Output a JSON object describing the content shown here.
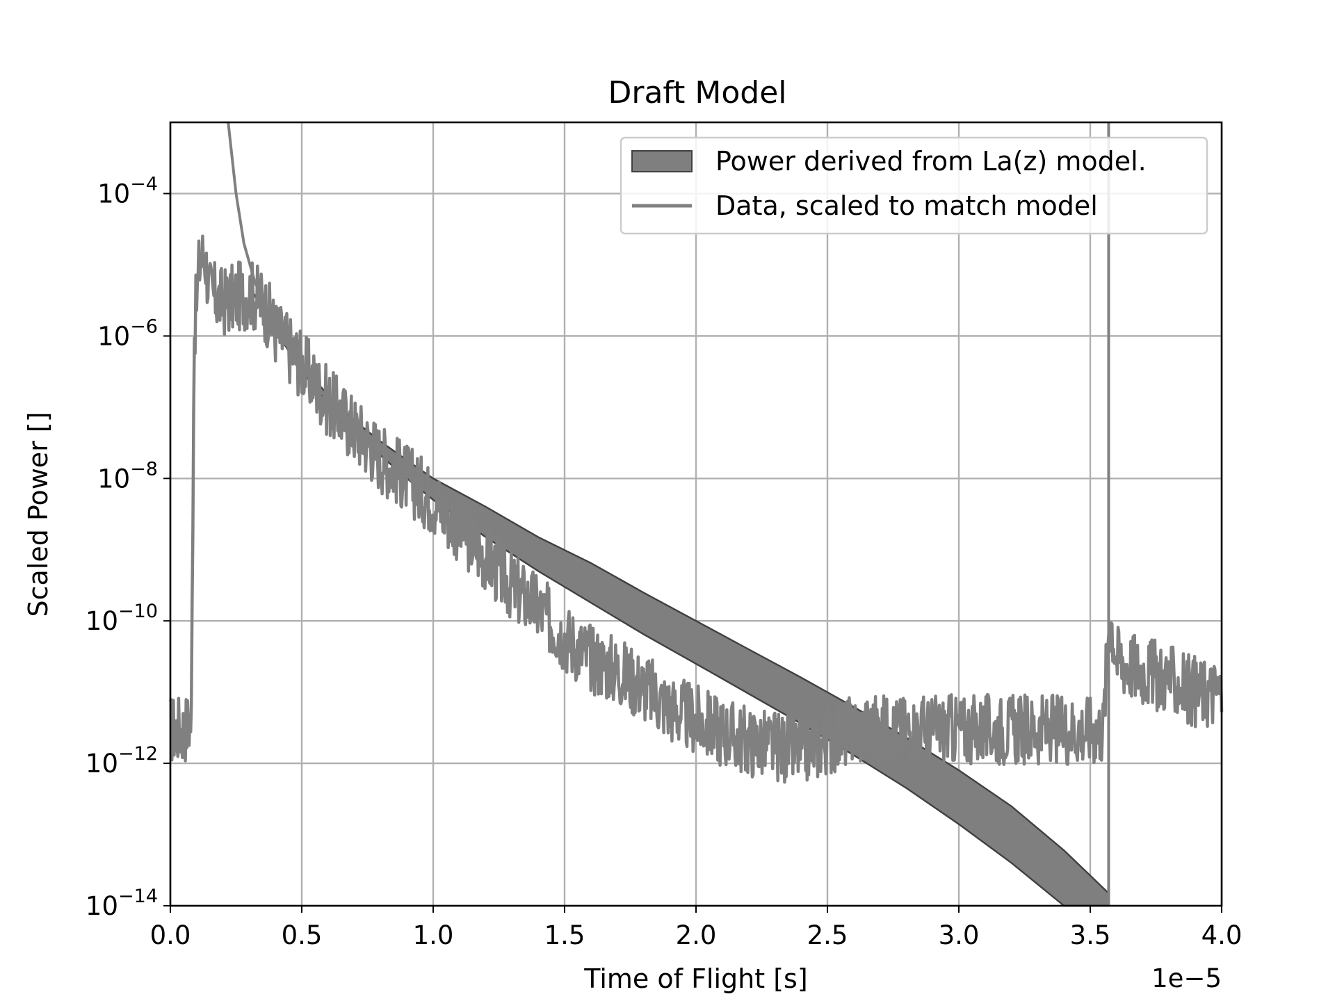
{
  "chart_data": {
    "type": "line",
    "title": "Draft Model",
    "xlabel": "Time of Flight [s]",
    "ylabel": "Scaled Power []",
    "x_offset_label": "1e−5",
    "xlim": [
      0.0,
      4e-05
    ],
    "ylim": [
      1e-14,
      0.001
    ],
    "yscale": "log",
    "grid": true,
    "legend_position": "top-right",
    "x_tick_labels": [
      "0.0",
      "0.5",
      "1.0",
      "1.5",
      "2.0",
      "2.5",
      "3.0",
      "3.5",
      "4.0"
    ],
    "y_tick_labels": [
      {
        "base": "10",
        "exp": "−4"
      },
      {
        "base": "10",
        "exp": "−6"
      },
      {
        "base": "10",
        "exp": "−8"
      },
      {
        "base": "10",
        "exp": "−10"
      },
      {
        "base": "10",
        "exp": "−12"
      },
      {
        "base": "10",
        "exp": "−14"
      }
    ],
    "colors": {
      "band_fill": "#7f7f7f",
      "band_edge": "#404040",
      "data_line": "#808080",
      "grid": "#b0b0b0"
    },
    "series": [
      {
        "name": "Power derived from La(z) model.",
        "kind": "band",
        "x": [
          3e-06,
          4e-06,
          5e-06,
          6e-06,
          7e-06,
          8e-06,
          9e-06,
          1e-05,
          1.2e-05,
          1.4e-05,
          1.6e-05,
          1.8e-05,
          2e-05,
          2.2e-05,
          2.4e-05,
          2.6e-05,
          2.8e-05,
          3e-05,
          3.2e-05,
          3.4e-05,
          3.57e-05
        ],
        "lower": [
          5e-06,
          1.2e-06,
          3.2e-07,
          1.1e-07,
          4.5e-08,
          2.1e-08,
          1e-08,
          5e-09,
          1.5e-09,
          5e-10,
          1.8e-10,
          6.5e-11,
          2.5e-11,
          9.5e-12,
          3.6e-12,
          1.3e-12,
          4.5e-13,
          1.4e-13,
          4e-14,
          1e-14,
          1e-14
        ],
        "upper": [
          5e-06,
          1.3e-06,
          3.8e-07,
          1.5e-07,
          6.5e-08,
          3.3e-08,
          1.8e-08,
          1e-08,
          4e-09,
          1.5e-09,
          6.5e-10,
          2.5e-10,
          1e-10,
          4e-11,
          1.6e-11,
          6.2e-12,
          2.3e-12,
          8e-13,
          2.5e-13,
          6e-14,
          1.5e-14
        ]
      },
      {
        "name": "Data, scaled to match model",
        "kind": "line",
        "x": [
          0.0,
          5e-07,
          8e-07,
          9e-07,
          1.1e-06,
          1.3e-06,
          1.5e-06,
          2e-06,
          3e-06,
          3.5e-06,
          4e-06,
          5e-06,
          6e-06,
          7e-06,
          8e-06,
          9e-06,
          1e-05,
          1.1e-05,
          1.2e-05,
          1.3e-05,
          1.4e-05,
          1.5e-05,
          1.6e-05,
          1.7e-05,
          1.8e-05,
          1.9e-05,
          2e-05,
          2.2e-05,
          2.4e-05,
          2.6e-05,
          2.8e-05,
          3e-05,
          3.2e-05,
          3.4e-05,
          3.55e-05,
          3.57e-05,
          3.58e-05,
          3.6e-05,
          3.7e-05,
          3.8e-05,
          3.9e-05,
          4e-05
        ],
        "y": [
          3e-12,
          3e-12,
          4e-12,
          1e-06,
          1e-05,
          1.5e-05,
          4e-06,
          3e-06,
          4e-06,
          3e-06,
          1.2e-06,
          4e-07,
          1.2e-07,
          5e-08,
          2e-08,
          1e-08,
          5e-09,
          2e-09,
          8e-10,
          3e-10,
          1.5e-10,
          6e-11,
          3e-11,
          2e-11,
          1.2e-11,
          6e-12,
          4e-12,
          2e-12,
          1.5e-12,
          3e-12,
          3e-12,
          3e-12,
          3e-12,
          3e-12,
          3e-12,
          1e-10,
          1e-10,
          3e-11,
          2e-11,
          1.5e-11,
          1e-11,
          1e-11
        ]
      },
      {
        "name": "",
        "kind": "model_line",
        "x": [
          2.2e-06,
          2.5e-06,
          2.8e-06,
          3.2e-06,
          3.6e-06,
          4e-06,
          5e-06
        ],
        "y": [
          0.001,
          0.0001,
          2e-05,
          6e-06,
          2.5e-06,
          1.3e-06,
          3.5e-07
        ]
      },
      {
        "name": "",
        "kind": "vertical_line",
        "x": [
          3.57e-05,
          3.57e-05
        ],
        "y": [
          1e-14,
          0.001
        ]
      }
    ]
  }
}
